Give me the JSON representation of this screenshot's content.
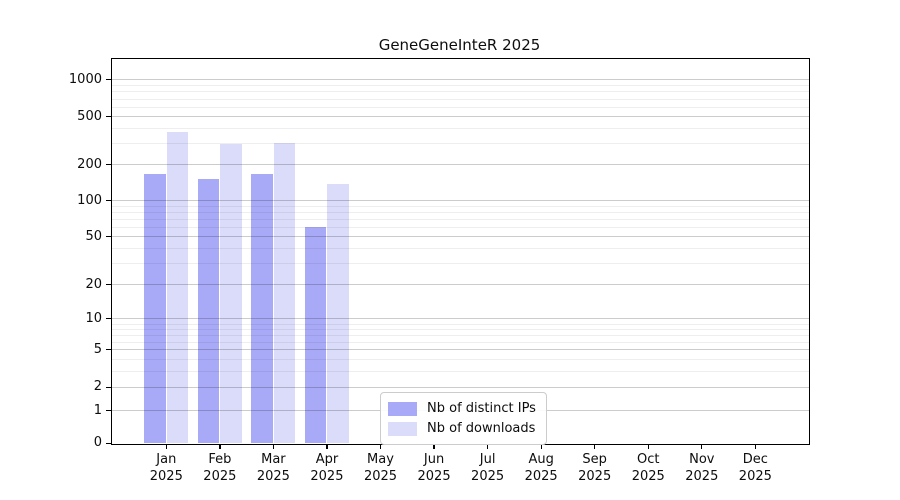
{
  "chart_data": {
    "type": "bar",
    "title": "GeneGeneInteR 2025",
    "categories": [
      "Jan 2025",
      "Feb 2025",
      "Mar 2025",
      "Apr 2025",
      "May 2025",
      "Jun 2025",
      "Jul 2025",
      "Aug 2025",
      "Sep 2025",
      "Oct 2025",
      "Nov 2025",
      "Dec 2025"
    ],
    "series": [
      {
        "name": "Nb of distinct IPs",
        "color": "#a9aaf7",
        "values": [
          168,
          153,
          167,
          60,
          0,
          0,
          0,
          0,
          0,
          0,
          0,
          0
        ]
      },
      {
        "name": "Nb of downloads",
        "color": "#dadcfa",
        "values": [
          374,
          296,
          302,
          139,
          0,
          0,
          0,
          0,
          0,
          0,
          0,
          0
        ]
      }
    ],
    "y_axis": {
      "scale": "symlog",
      "ticks": [
        0,
        1,
        2,
        5,
        10,
        20,
        50,
        100,
        200,
        500,
        1000
      ],
      "minor_gridlines": [
        3,
        4,
        6,
        7,
        8,
        9,
        30,
        40,
        60,
        70,
        80,
        90,
        300,
        400,
        600,
        700,
        800,
        900
      ]
    },
    "xlabel": "",
    "ylabel": "",
    "grid": "horizontal",
    "legend_position": "bottom-center-inside"
  }
}
